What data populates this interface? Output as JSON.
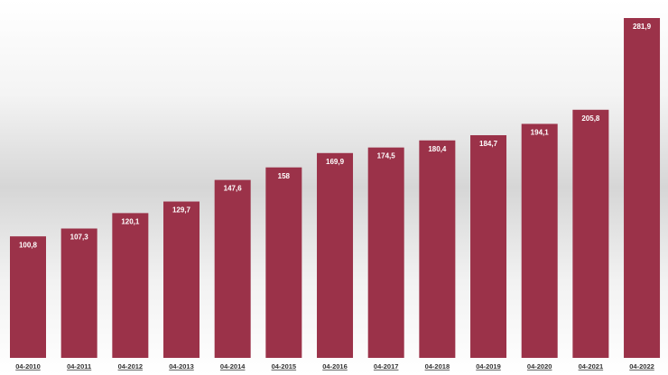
{
  "chart_data": {
    "type": "bar",
    "categories": [
      "04-2010",
      "04-2011",
      "04-2012",
      "04-2013",
      "04-2014",
      "04-2015",
      "04-2016",
      "04-2017",
      "04-2018",
      "04-2019",
      "04-2020",
      "04-2021",
      "04-2022"
    ],
    "values": [
      100.8,
      107.3,
      120.1,
      129.7,
      147.6,
      158,
      169.9,
      174.5,
      180.4,
      184.7,
      194.1,
      205.8,
      281.9
    ],
    "value_labels": [
      "100,8",
      "107,3",
      "120,1",
      "129,7",
      "147,6",
      "158",
      "169,9",
      "174,5",
      "180,4",
      "184,7",
      "194,1",
      "205,8",
      "281,9"
    ],
    "color": "#9b3249"
  }
}
